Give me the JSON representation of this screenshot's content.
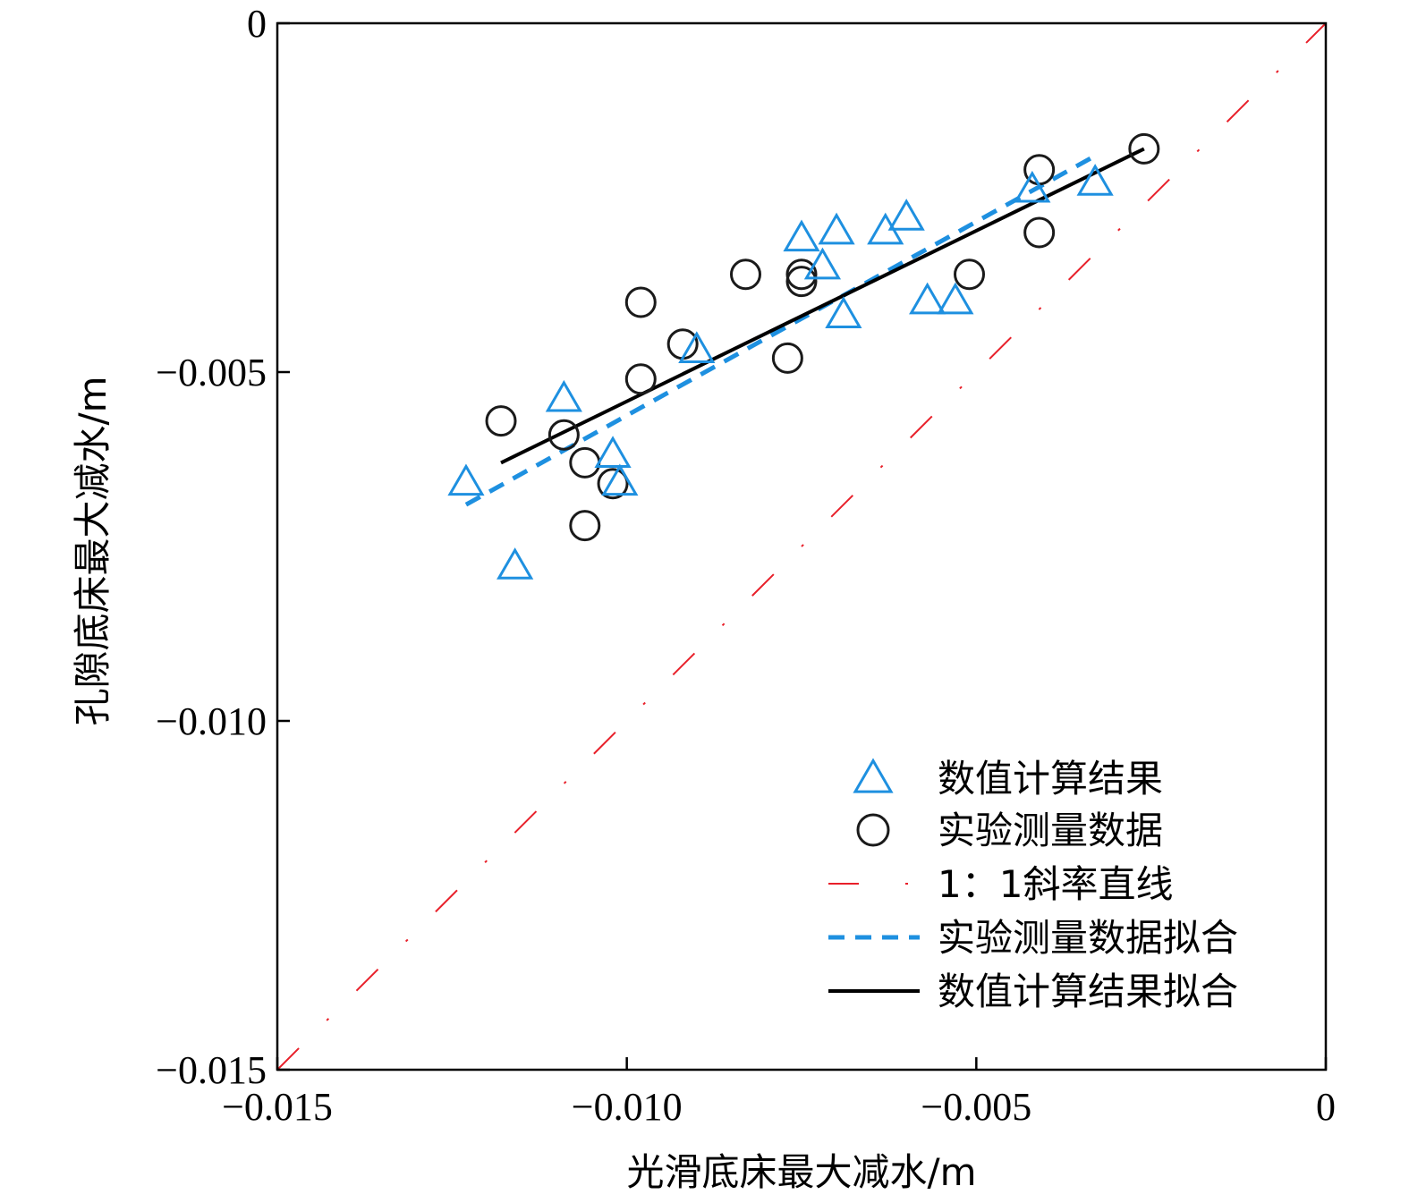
{
  "chart_data": {
    "type": "scatter",
    "xlabel": "光滑底床最大减水/m",
    "ylabel": "孔隙底床最大减水/m",
    "xlim": [
      -0.015,
      0
    ],
    "ylim": [
      -0.015,
      0
    ],
    "xticks": [
      -0.015,
      -0.01,
      -0.005,
      0
    ],
    "yticks": [
      -0.015,
      -0.01,
      -0.005,
      0
    ],
    "xtick_labels": [
      "−0.015",
      "−0.010",
      "−0.005",
      "0"
    ],
    "ytick_labels": [
      "−0.015",
      "−0.010",
      "−0.005",
      "0"
    ],
    "grid": false,
    "legend_position": "bottom-right",
    "colors": {
      "numerical": "#1e90e0",
      "experimental": "#1a1a1a",
      "identity": "#e8202a",
      "exp_fit": "#1e90e0",
      "num_fit": "#000000"
    },
    "series": [
      {
        "name": "数值计算结果",
        "marker": "triangle",
        "points": [
          [
            -0.0123,
            -0.0066
          ],
          [
            -0.0116,
            -0.0078
          ],
          [
            -0.0109,
            -0.0054
          ],
          [
            -0.0102,
            -0.0062
          ],
          [
            -0.0101,
            -0.0066
          ],
          [
            -0.009,
            -0.0047
          ],
          [
            -0.0075,
            -0.0031
          ],
          [
            -0.0072,
            -0.0035
          ],
          [
            -0.007,
            -0.003
          ],
          [
            -0.0069,
            -0.0042
          ],
          [
            -0.0063,
            -0.003
          ],
          [
            -0.006,
            -0.0028
          ],
          [
            -0.0057,
            -0.004
          ],
          [
            -0.0053,
            -0.004
          ],
          [
            -0.0042,
            -0.0024
          ],
          [
            -0.0033,
            -0.0023
          ]
        ]
      },
      {
        "name": "实验测量数据",
        "marker": "circle",
        "points": [
          [
            -0.0118,
            -0.0057
          ],
          [
            -0.0109,
            -0.0059
          ],
          [
            -0.0106,
            -0.0063
          ],
          [
            -0.0106,
            -0.0072
          ],
          [
            -0.0102,
            -0.0066
          ],
          [
            -0.0098,
            -0.004
          ],
          [
            -0.0098,
            -0.0051
          ],
          [
            -0.0092,
            -0.0046
          ],
          [
            -0.0083,
            -0.0036
          ],
          [
            -0.0077,
            -0.0048
          ],
          [
            -0.0075,
            -0.0037
          ],
          [
            -0.0075,
            -0.0036
          ],
          [
            -0.0051,
            -0.0036
          ],
          [
            -0.0041,
            -0.0021
          ],
          [
            -0.0041,
            -0.003
          ],
          [
            -0.0026,
            -0.0018
          ]
        ]
      }
    ],
    "lines": [
      {
        "name": "1：1斜率直线",
        "style": "dash-dot",
        "points": [
          [
            -0.015,
            -0.015
          ],
          [
            0,
            0
          ]
        ]
      },
      {
        "name": "实验测量数据拟合",
        "style": "dashed",
        "points": [
          [
            -0.0123,
            -0.0069
          ],
          [
            -0.0033,
            -0.0019
          ]
        ]
      },
      {
        "name": "数值计算结果拟合",
        "style": "solid",
        "points": [
          [
            -0.0118,
            -0.0063
          ],
          [
            -0.0026,
            -0.0018
          ]
        ]
      }
    ]
  }
}
